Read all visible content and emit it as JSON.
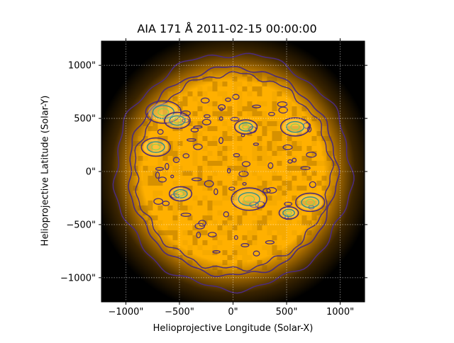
{
  "chart_data": {
    "type": "heatmap",
    "title": "AIA 171 Å 2011-02-15 00:00:00",
    "xlabel": "Helioprojective Longitude (Solar-X)",
    "ylabel": "Helioprojective Latitude (Solar-Y)",
    "xlim": [
      -1228,
      1228
    ],
    "ylim": [
      -1228,
      1228
    ],
    "xticks": [
      -1000,
      -500,
      0,
      500,
      1000
    ],
    "yticks": [
      -1000,
      -500,
      0,
      500,
      1000
    ],
    "xtick_labels": [
      "−1000\"",
      "−500\"",
      "0\"",
      "500\"",
      "1000\""
    ],
    "ytick_labels": [
      "−1000\"",
      "−500\"",
      "0\"",
      "500\"",
      "1000\""
    ],
    "grid": true,
    "colormap": "sdoaia171",
    "contour_colormap": "viridis",
    "solar_radius_arcsec": 980,
    "outer_contour_radius_arcsec": 1100,
    "active_regions": [
      {
        "x": -720,
        "y": 230,
        "size": 90
      },
      {
        "x": -650,
        "y": 560,
        "size": 110
      },
      {
        "x": -520,
        "y": 480,
        "size": 80
      },
      {
        "x": -490,
        "y": -210,
        "size": 70
      },
      {
        "x": 150,
        "y": -260,
        "size": 110
      },
      {
        "x": 120,
        "y": 420,
        "size": 70
      },
      {
        "x": 580,
        "y": 420,
        "size": 90
      },
      {
        "x": 720,
        "y": -290,
        "size": 90
      },
      {
        "x": 520,
        "y": -390,
        "size": 60
      }
    ]
  },
  "colors": {
    "disk_core": "#ffb000",
    "disk_mid": "#d08a00",
    "limb_glow": "#6a4200",
    "background": "#000000",
    "contour_low": "#4b2b7a",
    "contour_mid": "#2e8f8c",
    "contour_high": "#8fd14f"
  }
}
